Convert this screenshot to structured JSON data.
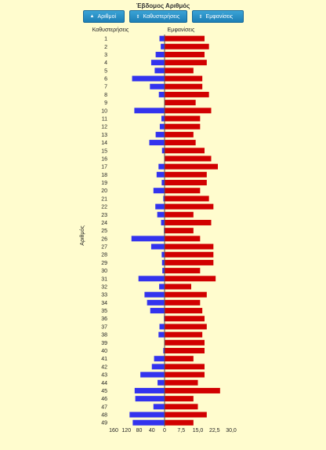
{
  "chart_data": {
    "type": "bar",
    "title": "Έβδομος Αριθμός",
    "ylabel": "Αριθμός",
    "left_header": "Καθυστερήσεις",
    "right_header": "Εμφανίσεις",
    "categories": [
      "1",
      "2",
      "3",
      "4",
      "5",
      "6",
      "7",
      "8",
      "9",
      "10",
      "11",
      "12",
      "13",
      "14",
      "15",
      "16",
      "17",
      "18",
      "19",
      "20",
      "21",
      "22",
      "23",
      "24",
      "25",
      "26",
      "27",
      "28",
      "29",
      "30",
      "31",
      "32",
      "33",
      "34",
      "35",
      "36",
      "37",
      "38",
      "39",
      "40",
      "41",
      "42",
      "43",
      "44",
      "45",
      "46",
      "47",
      "48",
      "49"
    ],
    "series": [
      {
        "name": "Καθυστερήσεις",
        "color": "#3333ee",
        "direction": "left",
        "values": [
          16,
          12,
          28,
          42,
          31,
          102,
          46,
          18,
          0,
          95,
          10,
          15,
          28,
          48,
          8,
          0,
          19,
          25,
          9,
          35,
          4,
          29,
          23,
          11,
          2,
          104,
          42,
          9,
          8,
          7,
          82,
          17,
          63,
          55,
          45,
          2,
          16,
          19,
          0,
          4,
          33,
          40,
          76,
          22,
          94,
          92,
          35,
          110,
          100
        ]
      },
      {
        "name": "Εμφανίσεις",
        "color": "#d10000",
        "direction": "right",
        "values": [
          18,
          20,
          18,
          19,
          13,
          17,
          17,
          20,
          14,
          21,
          16,
          16,
          13,
          14,
          18,
          21,
          24,
          19,
          19,
          16,
          20,
          22,
          13,
          21,
          13,
          16,
          22,
          22,
          22,
          16,
          23,
          12,
          19,
          16,
          17,
          18,
          19,
          17,
          18,
          18,
          13,
          18,
          18,
          15,
          25,
          13,
          15,
          19,
          13
        ]
      }
    ],
    "x_left_ticks": [
      "160",
      "120",
      "80",
      "40",
      "0"
    ],
    "x_right_ticks": [
      "0",
      "7,5",
      "15,0",
      "22,5",
      "30,0"
    ],
    "x_left_range": [
      0,
      160
    ],
    "x_right_range": [
      0,
      30
    ],
    "legend": "none",
    "grid": false
  },
  "toolbar": {
    "btn_numbers": "Αριθμοί",
    "btn_delays": "Καθυστερήσεις",
    "btn_appearances": "Εμφανίσεις"
  },
  "colors": {
    "background": "#fffcce",
    "button": "#1d7fb6",
    "left_bar": "#3333ee",
    "right_bar": "#d10000"
  }
}
